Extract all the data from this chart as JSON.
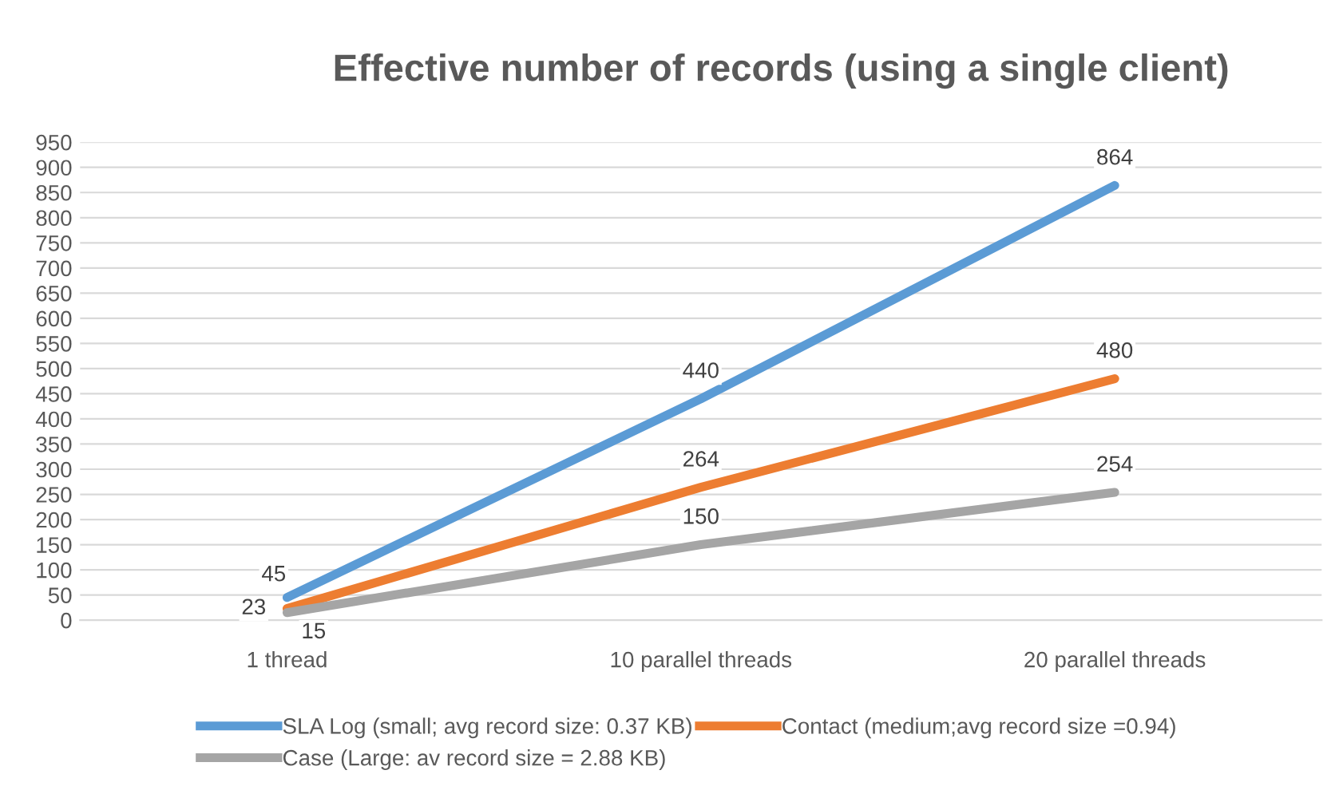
{
  "chart_data": {
    "type": "line",
    "title": "Effective number of records (using a single client)",
    "categories": [
      "1 thread",
      "10 parallel threads",
      "20 parallel threads"
    ],
    "series": [
      {
        "name": "SLA Log (small; avg record size: 0.37 KB)",
        "color": "#5b9bd5",
        "values": [
          45,
          440,
          864
        ]
      },
      {
        "name": "Contact (medium;avg record size =0.94)",
        "color": "#ed7d31",
        "values": [
          23,
          264,
          480
        ]
      },
      {
        "name": "Case (Large: av record size = 2.88 KB)",
        "color": "#a5a5a5",
        "values": [
          15,
          150,
          254
        ]
      }
    ],
    "ylim": [
      0,
      950
    ],
    "yticks": [
      0,
      50,
      100,
      150,
      200,
      250,
      300,
      350,
      400,
      450,
      500,
      550,
      600,
      650,
      700,
      750,
      800,
      850,
      900,
      950
    ],
    "grid": "y",
    "legend": "bottom",
    "data_labels": true,
    "marker": "none",
    "line_style": "solid"
  }
}
